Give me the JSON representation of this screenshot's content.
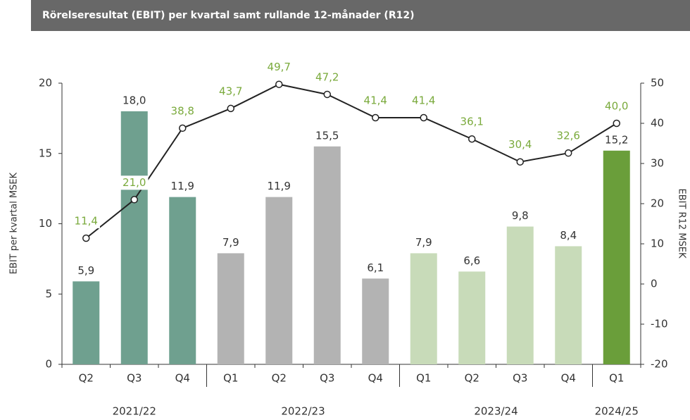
{
  "chart_data": {
    "type": "bar_line",
    "title": "Rörelseresultat (EBIT) per kvartal samt rullande 12-månader (R12)",
    "ylabel": "EBIT per kvartal MSEK",
    "y2label": "EBIT R12 MSEK",
    "categories": [
      "Q2",
      "Q3",
      "Q4",
      "Q1",
      "Q2",
      "Q3",
      "Q4",
      "Q1",
      "Q2",
      "Q3",
      "Q4",
      "Q1"
    ],
    "groups": [
      "2021/22",
      "2022/23",
      "2023/24",
      "2024/25"
    ],
    "group_sizes": [
      3,
      4,
      4,
      1
    ],
    "series": [
      {
        "type": "bar",
        "colors": [
          "#6fa08f",
          "#6fa08f",
          "#6fa08f",
          "#b3b3b3",
          "#b3b3b3",
          "#b3b3b3",
          "#b3b3b3",
          "#c8dbb9",
          "#c8dbb9",
          "#c8dbb9",
          "#c8dbb9",
          "#6a9e3a"
        ],
        "values": [
          5.9,
          18.0,
          11.9,
          7.9,
          11.9,
          15.5,
          6.1,
          7.9,
          6.6,
          9.8,
          8.4,
          15.2
        ],
        "value_labels": [
          "5,9",
          "18,0",
          "11,9",
          "7,9",
          "11,9",
          "15,5",
          "6,1",
          "7,9",
          "6,6",
          "9,8",
          "8,4",
          "15,2"
        ],
        "label_color": "#333333"
      },
      {
        "type": "line",
        "axis": "y2",
        "color": "#222222",
        "label_color": "#7aaa3c",
        "values": [
          11.4,
          21.0,
          38.8,
          43.7,
          49.7,
          47.2,
          41.4,
          41.4,
          36.1,
          30.4,
          32.6,
          40.0
        ],
        "value_labels": [
          "11,4",
          "21,0",
          "38,8",
          "43,7",
          "49,7",
          "47,2",
          "41,4",
          "41,4",
          "36,1",
          "30,4",
          "32,6",
          "40,0"
        ]
      }
    ],
    "ylim": [
      0,
      20
    ],
    "yticks": [
      0,
      5,
      10,
      15,
      20
    ],
    "y2lim": [
      -20,
      50
    ],
    "y2ticks": [
      -20,
      -10,
      0,
      10,
      20,
      30,
      40,
      50
    ]
  }
}
